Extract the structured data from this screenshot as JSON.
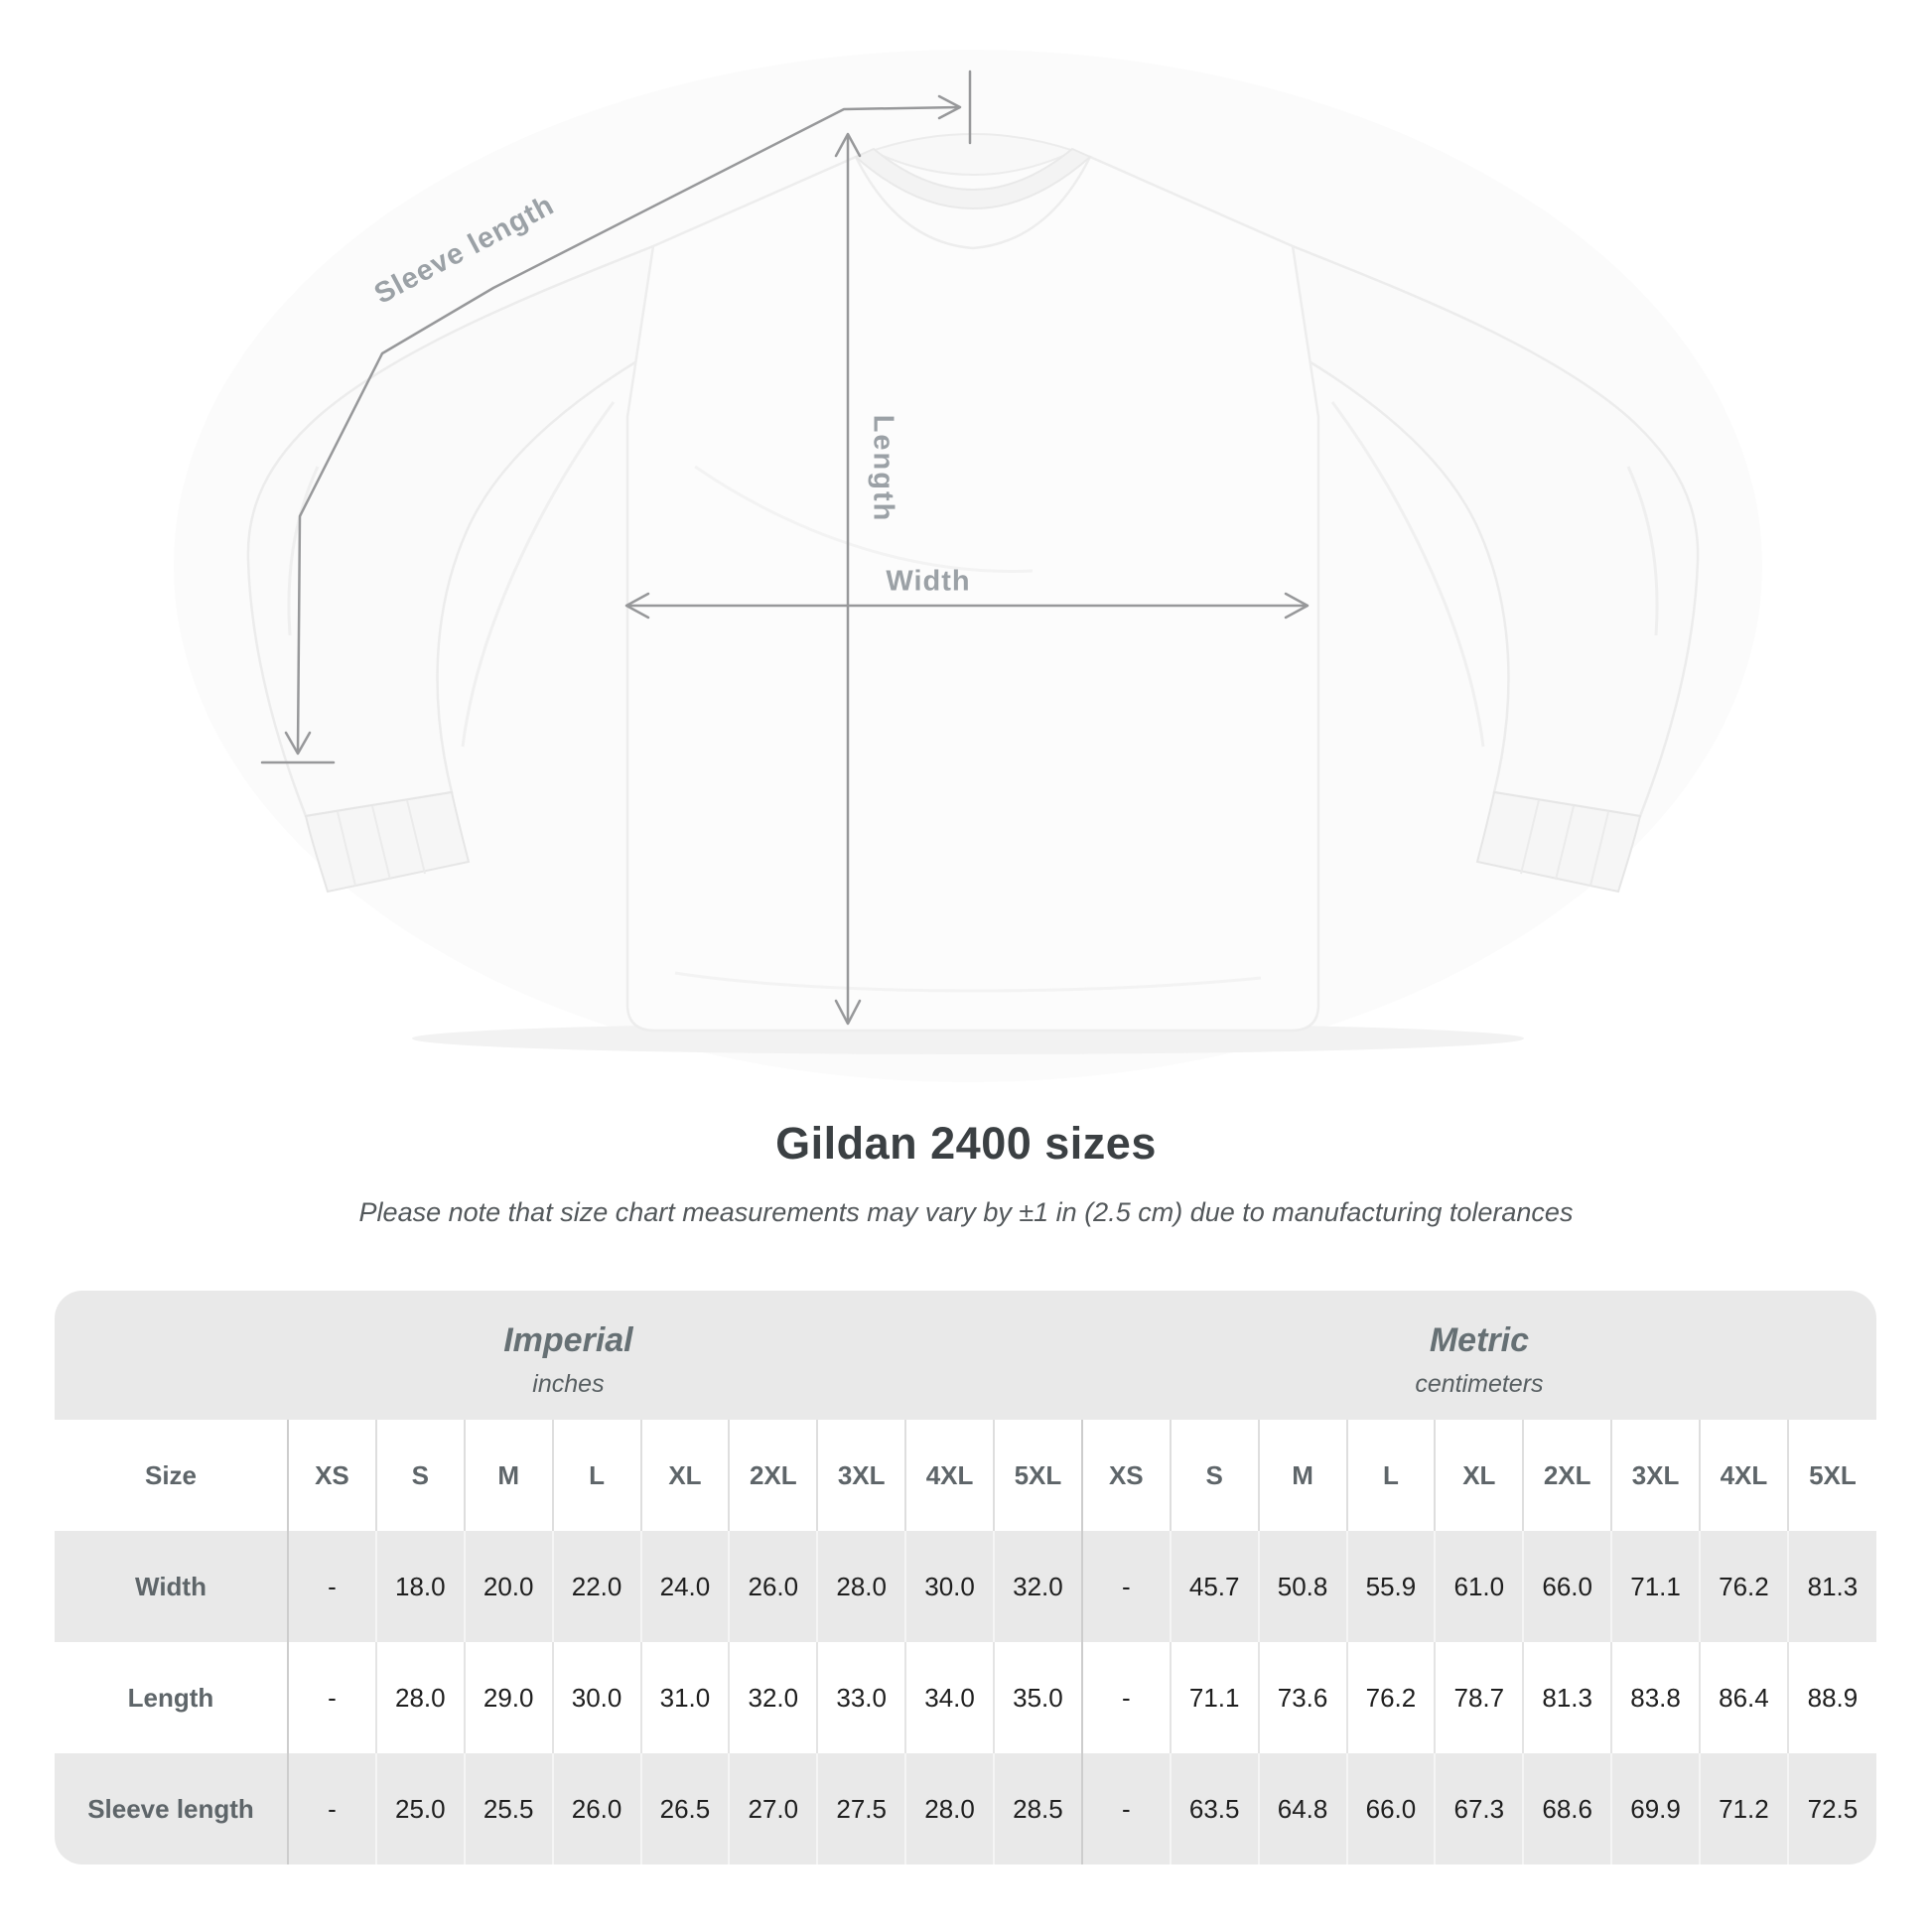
{
  "diagram": {
    "sleeve_length_label": "Sleeve length",
    "length_label": "Length",
    "width_label": "Width",
    "line_color": "#97989a",
    "label_color": "#9ba1a6"
  },
  "chart_data": {
    "type": "table",
    "title": "Gildan 2400 sizes",
    "subtitle": "Please note that size chart measurements may vary by ±1 in (2.5 cm) due to manufacturing tolerances",
    "size_column_header": "Size",
    "unit_groups": [
      {
        "label": "Imperial",
        "sublabel": "inches"
      },
      {
        "label": "Metric",
        "sublabel": "centimeters"
      }
    ],
    "sizes": [
      "XS",
      "S",
      "M",
      "L",
      "XL",
      "2XL",
      "3XL",
      "4XL",
      "5XL"
    ],
    "rows": [
      {
        "label": "Width",
        "imperial": [
          "-",
          "18.0",
          "20.0",
          "22.0",
          "24.0",
          "26.0",
          "28.0",
          "30.0",
          "32.0"
        ],
        "metric": [
          "-",
          "45.7",
          "50.8",
          "55.9",
          "61.0",
          "66.0",
          "71.1",
          "76.2",
          "81.3"
        ]
      },
      {
        "label": "Length",
        "imperial": [
          "-",
          "28.0",
          "29.0",
          "30.0",
          "31.0",
          "32.0",
          "33.0",
          "34.0",
          "35.0"
        ],
        "metric": [
          "-",
          "71.1",
          "73.6",
          "76.2",
          "78.7",
          "81.3",
          "83.8",
          "86.4",
          "88.9"
        ]
      },
      {
        "label": "Sleeve length",
        "imperial": [
          "-",
          "25.0",
          "25.5",
          "26.0",
          "26.5",
          "27.0",
          "27.5",
          "28.0",
          "28.5"
        ],
        "metric": [
          "-",
          "63.5",
          "64.8",
          "66.0",
          "67.3",
          "68.6",
          "69.9",
          "71.2",
          "72.5"
        ]
      }
    ]
  },
  "colors": {
    "band_gray": "#e9e9e9",
    "row_gray": "#e9e9e9",
    "title_text": "#3b4043",
    "value_text": "#1e1e1e",
    "header_text": "#5e6569"
  }
}
